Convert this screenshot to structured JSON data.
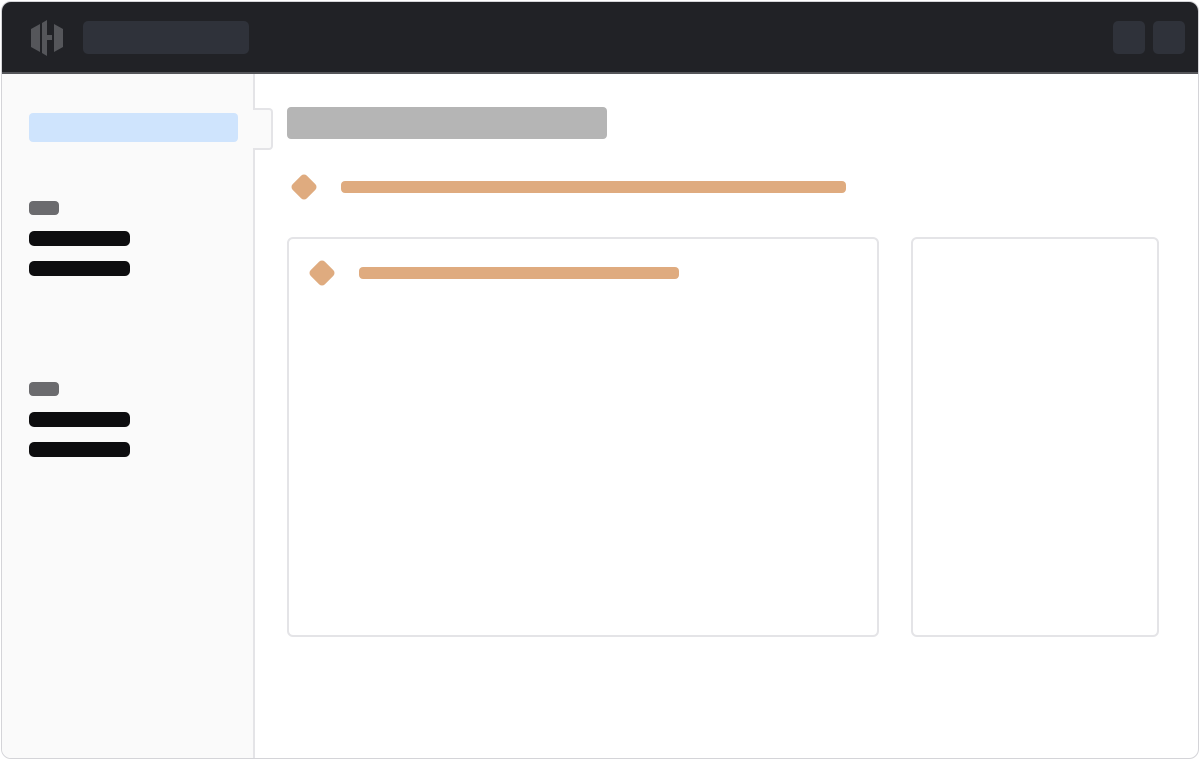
{
  "colors": {
    "header_bg": "#212226",
    "header_placeholder": "#2f323a",
    "sidebar_bg": "#fafafa",
    "active_item": "#cfe4fd",
    "accent": "#dfab7f",
    "title_placeholder": "#b5b5b5",
    "label_placeholder": "#6b6b6e",
    "text_placeholder": "#0d0d0f"
  },
  "header": {
    "logo_icon": "hexagon-h-logo-icon",
    "actions": [
      "action-button-1",
      "action-button-2"
    ]
  },
  "sidebar": {
    "groups": [
      {
        "items": 2
      },
      {
        "items": 2
      }
    ]
  },
  "main": {
    "alert_icon": "diamond-icon",
    "card_icon": "diamond-icon"
  }
}
